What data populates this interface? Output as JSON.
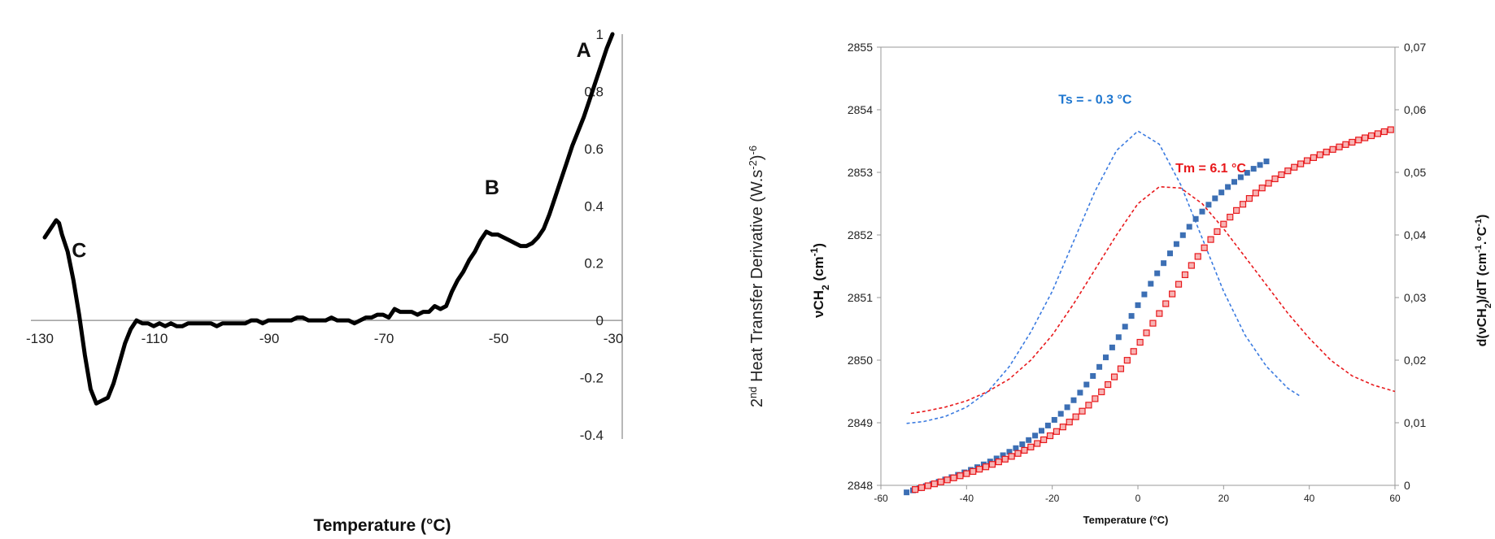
{
  "chart_data": [
    {
      "type": "line",
      "title": "",
      "xlabel": "Temperature (°C)",
      "ylabel": "2nd Heat Transfer Derivative (W.s-2)-6",
      "ylabel_parts": {
        "pre": "2",
        "sup1": "nd",
        "mid": " Heat Transfer Derivative (W.s",
        "sup2": "-2",
        "post": ")",
        "sup3": "-6"
      },
      "xlim": [
        -130,
        -30
      ],
      "ylim": [
        -0.4,
        1
      ],
      "xticks": [
        "-130",
        "-110",
        "-90",
        "-70",
        "-50",
        "-30"
      ],
      "yticks": [
        "-0.4",
        "-0.2",
        "0",
        "0.2",
        "0.4",
        "0.6",
        "0.8",
        "1"
      ],
      "annotations": [
        {
          "text": "A",
          "x": -36,
          "y": 0.92
        },
        {
          "text": "B",
          "x": -52,
          "y": 0.44
        },
        {
          "text": "C",
          "x": -124,
          "y": 0.22
        }
      ],
      "series": [
        {
          "color": "#000000",
          "x": [
            -130,
            -129,
            -128,
            -127.5,
            -127,
            -126,
            -125,
            -124,
            -123,
            -122,
            -121,
            -120,
            -119,
            -118,
            -117,
            -116,
            -115,
            -114,
            -113,
            -112,
            -111,
            -110,
            -109,
            -108,
            -107,
            -106,
            -105,
            -104,
            -103,
            -102,
            -101,
            -100,
            -99,
            -98,
            -97,
            -96,
            -95,
            -94,
            -93,
            -92,
            -91,
            -90,
            -89,
            -88,
            -87,
            -86,
            -85,
            -84,
            -83,
            -82,
            -81,
            -80,
            -79,
            -78,
            -77,
            -76,
            -75,
            -74,
            -73,
            -72,
            -71,
            -70,
            -69,
            -68,
            -67,
            -66,
            -65,
            -64,
            -63,
            -62,
            -61,
            -60,
            -59,
            -58,
            -57,
            -56,
            -55,
            -54,
            -53,
            -52,
            -51,
            -50,
            -49,
            -48,
            -47,
            -46,
            -45,
            -44,
            -43,
            -42,
            -41,
            -40,
            -39,
            -38,
            -37,
            -36,
            -35,
            -34,
            -33,
            -32,
            -31
          ],
          "y": [
            0.29,
            0.32,
            0.35,
            0.34,
            0.3,
            0.24,
            0.14,
            0.02,
            -0.12,
            -0.24,
            -0.29,
            -0.28,
            -0.27,
            -0.22,
            -0.15,
            -0.08,
            -0.03,
            0.0,
            -0.01,
            -0.01,
            -0.02,
            -0.01,
            -0.02,
            -0.01,
            -0.02,
            -0.02,
            -0.01,
            -0.01,
            -0.01,
            -0.01,
            -0.01,
            -0.02,
            -0.01,
            -0.01,
            -0.01,
            -0.01,
            -0.01,
            0.0,
            0.0,
            -0.01,
            0.0,
            0.0,
            0.0,
            0.0,
            0.0,
            0.01,
            0.01,
            0.0,
            0.0,
            0.0,
            0.0,
            0.01,
            0.0,
            0.0,
            0.0,
            -0.01,
            0.0,
            0.01,
            0.01,
            0.02,
            0.02,
            0.01,
            0.04,
            0.03,
            0.03,
            0.03,
            0.02,
            0.03,
            0.03,
            0.05,
            0.04,
            0.05,
            0.1,
            0.14,
            0.17,
            0.21,
            0.24,
            0.28,
            0.31,
            0.3,
            0.3,
            0.29,
            0.28,
            0.27,
            0.26,
            0.26,
            0.27,
            0.29,
            0.32,
            0.37,
            0.43,
            0.49,
            0.55,
            0.61,
            0.66,
            0.71,
            0.77,
            0.83,
            0.89,
            0.95,
            1.0
          ]
        }
      ]
    },
    {
      "type": "scatter",
      "title": "",
      "xlabel": "Temperature (°C)",
      "ylabel_left_parts": {
        "pre": "νCH",
        "sub": "2",
        "mid": " (cm",
        "sup": "-1",
        "post": ")"
      },
      "ylabel_right_parts": {
        "pre": "d(νCH",
        "sub": "2",
        "mid": ")/dT (cm",
        "sup1": "-1",
        "mid2": ".°C",
        "sup2": "-1",
        "post": ")"
      },
      "ylabel_left": "νCH2 (cm-1)",
      "ylabel_right": "d(νCH2)/dT (cm-1.°C-1)",
      "xlim": [
        -60,
        60
      ],
      "ylim_left": [
        2848,
        2855
      ],
      "ylim_right": [
        0,
        0.07
      ],
      "xticks": [
        "-60",
        "-40",
        "-20",
        "0",
        "20",
        "40",
        "60"
      ],
      "yticks_left": [
        "2848",
        "2849",
        "2850",
        "2851",
        "2852",
        "2853",
        "2854",
        "2855"
      ],
      "yticks_right": [
        "0",
        "0,01",
        "0,02",
        "0,03",
        "0,04",
        "0,05",
        "0,06",
        "0,07"
      ],
      "annotations": [
        {
          "text": "Ts = - 0.3 °C",
          "color": "#1f77d0",
          "x": -10,
          "y": 2854.1
        },
        {
          "text": "Tm = 6.1 °C",
          "color": "#e8191c",
          "x": 17,
          "y": 2853.0
        }
      ],
      "series": [
        {
          "marker": "square",
          "color": "#3c6fb4",
          "axis": "left",
          "x_start": -54,
          "x_end": 30,
          "x_step": 1.5,
          "curve": {
            "base": 2850.85,
            "amp": 1.9,
            "center": -0.3,
            "width": 10,
            "slope": 0.02,
            "offset_x": 0
          }
        },
        {
          "marker": "square-hollow",
          "color": "#e8191c",
          "axis": "right_rev",
          "x_start": -52,
          "x_end": 60,
          "x_step": 1.5,
          "curve": {
            "base": 2850.75,
            "amp": 1.9,
            "center": 6.1,
            "width": 11,
            "slope": 0.018,
            "offset_x": 0
          }
        },
        {
          "line": "dashed",
          "color": "#3b7be0",
          "axis": "right",
          "name_derivative": "",
          "x": [
            -54,
            -50,
            -45,
            -40,
            -35,
            -30,
            -25,
            -20,
            -15,
            -10,
            -5,
            0,
            5,
            10,
            15,
            20,
            25,
            30,
            35,
            38
          ],
          "y": [
            0.0099,
            0.0102,
            0.011,
            0.0125,
            0.015,
            0.019,
            0.0245,
            0.031,
            0.039,
            0.047,
            0.0535,
            0.0566,
            0.0545,
            0.048,
            0.0395,
            0.031,
            0.024,
            0.019,
            0.0155,
            0.0142
          ]
        },
        {
          "line": "dashed",
          "color": "#e8191c",
          "axis": "right",
          "x": [
            -53,
            -50,
            -45,
            -40,
            -35,
            -30,
            -25,
            -20,
            -15,
            -10,
            -5,
            0,
            5,
            10,
            15,
            20,
            25,
            30,
            35,
            40,
            45,
            50,
            55,
            60
          ],
          "y": [
            0.0115,
            0.0118,
            0.0125,
            0.0135,
            0.015,
            0.017,
            0.02,
            0.024,
            0.029,
            0.0345,
            0.04,
            0.045,
            0.0477,
            0.0475,
            0.045,
            0.041,
            0.0365,
            0.032,
            0.0275,
            0.0235,
            0.02,
            0.0175,
            0.016,
            0.015
          ]
        }
      ]
    }
  ]
}
